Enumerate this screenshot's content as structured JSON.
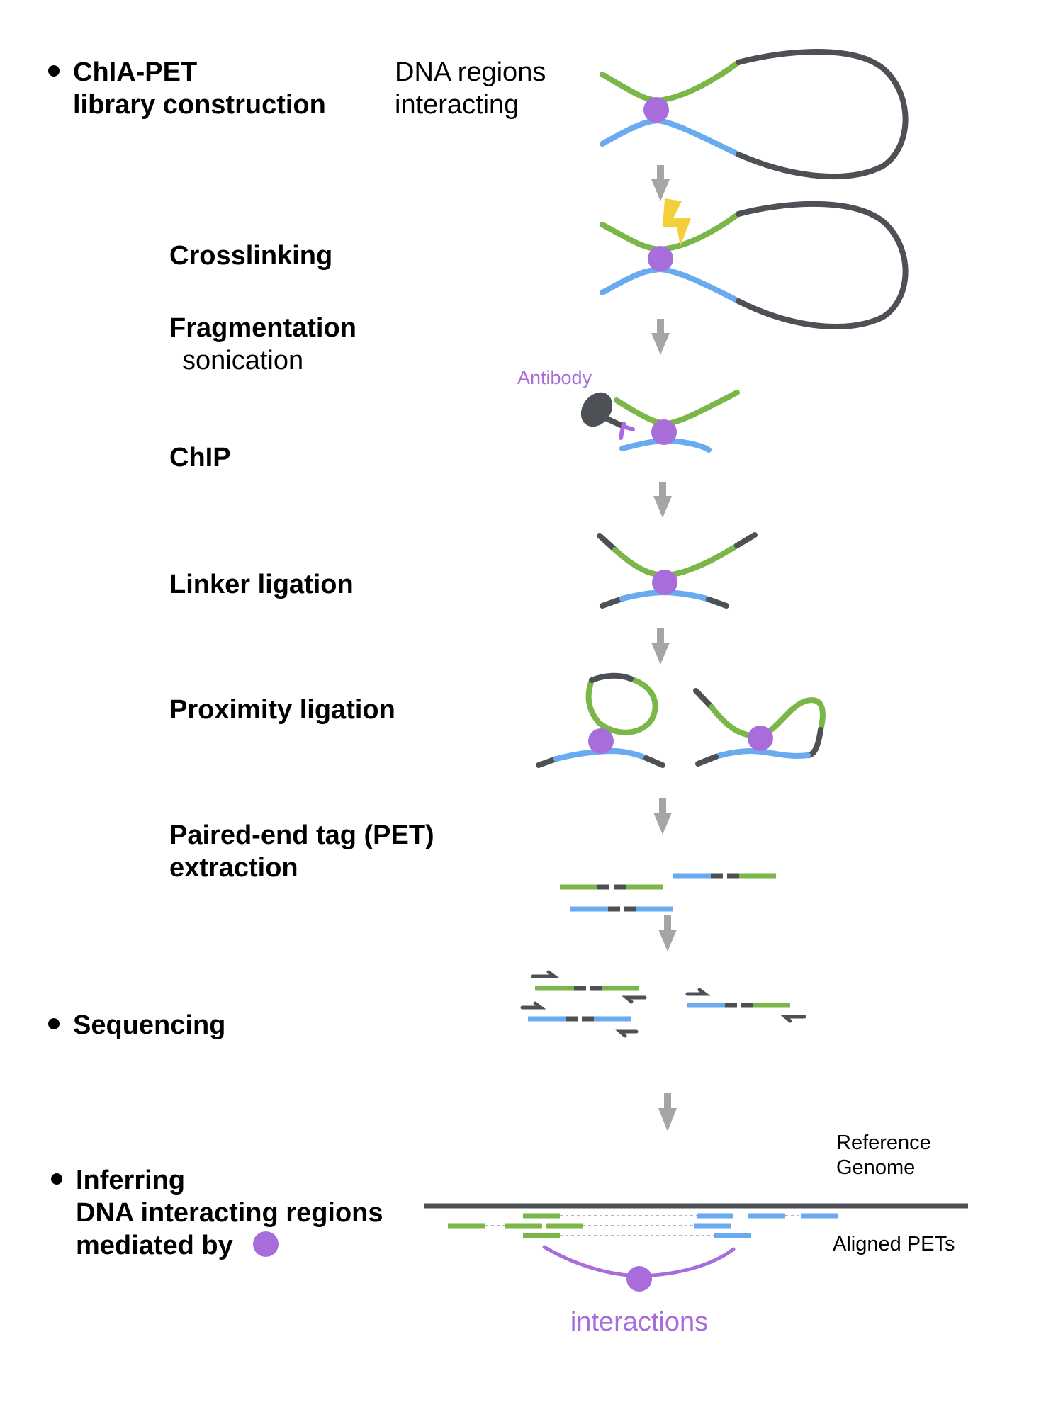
{
  "steps": {
    "construction_line1": "ChIA-PET",
    "construction_line2": "library construction",
    "crosslinking": "Crosslinking",
    "fragmentation": "Fragmentation",
    "sonication": "sonication",
    "chip": "ChIP",
    "linker_ligation": "Linker ligation",
    "proximity_ligation": "Proximity ligation",
    "pet_line1": "Paired-end tag (PET)",
    "pet_line2": "extraction",
    "sequencing": "Sequencing",
    "inferring_line1": "Inferring",
    "inferring_line2": "DNA interacting regions",
    "inferring_line3": "mediated by"
  },
  "annotations": {
    "dna_regions_line1": "DNA regions",
    "dna_regions_line2": "interacting",
    "antibody": "Antibody",
    "reference_line1": "Reference",
    "reference_line2": "Genome",
    "aligned_pets": "Aligned PETs",
    "interactions": "interactions"
  },
  "colors": {
    "green_strand": "#7ab648",
    "blue_strand": "#6aaaf0",
    "dark_linker": "#4d5156",
    "protein": "#a86ddb",
    "arrow": "#a5a5a5",
    "lightning": "#f2cf3b"
  }
}
